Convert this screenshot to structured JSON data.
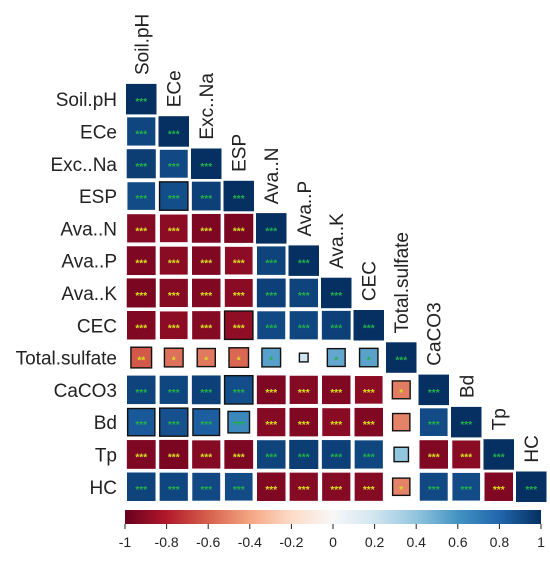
{
  "chart_data": {
    "type": "heatmap",
    "layout": "lower-triangle",
    "title": "",
    "variables": [
      "Soil.pH",
      "ECe",
      "Exc..Na",
      "ESP",
      "Ava..N",
      "Ava..P",
      "Ava..K",
      "CEC",
      "Total.sulfate",
      "CaCO3",
      "Bd",
      "Tp",
      "HC"
    ],
    "values": [
      [
        1
      ],
      [
        0.92,
        1
      ],
      [
        0.95,
        0.91,
        1
      ],
      [
        0.9,
        0.89,
        0.94,
        1
      ],
      [
        -0.92,
        -0.9,
        -0.94,
        -0.95,
        1
      ],
      [
        -0.94,
        -0.91,
        -0.93,
        -0.9,
        0.93,
        1
      ],
      [
        -0.95,
        -0.92,
        -0.93,
        -0.91,
        0.94,
        0.93,
        1
      ],
      [
        -0.93,
        -0.9,
        -0.92,
        -0.89,
        0.91,
        0.92,
        0.94,
        1
      ],
      [
        -0.62,
        -0.55,
        -0.53,
        -0.58,
        0.55,
        0.2,
        0.52,
        0.54,
        1
      ],
      [
        0.93,
        0.92,
        0.94,
        0.89,
        -0.94,
        -0.92,
        -0.93,
        -0.9,
        -0.52,
        1
      ],
      [
        0.85,
        0.88,
        0.83,
        0.65,
        -0.92,
        -0.93,
        -0.91,
        -0.93,
        -0.5,
        0.9,
        1
      ],
      [
        -0.94,
        -0.95,
        -0.92,
        -0.94,
        0.93,
        0.95,
        0.94,
        0.92,
        0.4,
        -0.93,
        -0.91,
        1
      ],
      [
        0.93,
        0.92,
        0.91,
        0.9,
        -0.93,
        -0.92,
        -0.92,
        -0.92,
        -0.5,
        0.91,
        0.9,
        -0.93,
        1
      ]
    ],
    "significance": [
      [
        "***"
      ],
      [
        "***",
        "***"
      ],
      [
        "***",
        "***",
        "***"
      ],
      [
        "***",
        "***",
        "***",
        "***"
      ],
      [
        "***",
        "***",
        "***",
        "***",
        "***"
      ],
      [
        "***",
        "***",
        "***",
        "***",
        "***",
        "***"
      ],
      [
        "***",
        "***",
        "***",
        "***",
        "***",
        "***",
        "***"
      ],
      [
        "***",
        "***",
        "***",
        "***",
        "***",
        "***",
        "***",
        "***"
      ],
      [
        "**",
        "*",
        "*",
        "*",
        "*",
        "",
        "*",
        "*",
        "***"
      ],
      [
        "***",
        "***",
        "***",
        "***",
        "***",
        "***",
        "***",
        "***",
        "*",
        "***"
      ],
      [
        "***",
        "***",
        "***",
        "***",
        "***",
        "***",
        "***",
        "***",
        "",
        "***",
        "***"
      ],
      [
        "***",
        "***",
        "***",
        "***",
        "***",
        "***",
        "***",
        "***",
        "",
        "***",
        "***",
        "***"
      ],
      [
        "***",
        "***",
        "***",
        "***",
        "***",
        "***",
        "***",
        "***",
        "*",
        "***",
        "***",
        "***",
        "***"
      ]
    ],
    "colorbar": {
      "range": [
        -1,
        1
      ],
      "ticks": [
        "-1",
        "-0.8",
        "-0.6",
        "-0.4",
        "-0.2",
        "0",
        "0.2",
        "0.4",
        "0.6",
        "0.8",
        "1"
      ],
      "colors": {
        "negative": "#67001f",
        "mid": "#f7f7f7",
        "positive": "#053061"
      }
    },
    "significance_colors": {
      "on_negative": "#d9e021",
      "on_positive": "#22b14c"
    }
  }
}
